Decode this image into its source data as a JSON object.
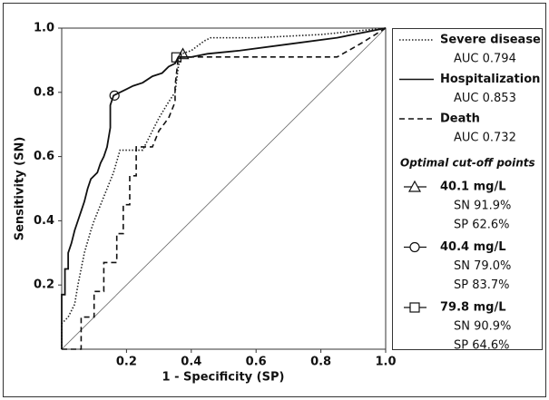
{
  "chart_data": {
    "type": "line",
    "xlabel": "1 - Specificity (SP)",
    "ylabel": "Sensitivity (SN)",
    "xlim": [
      0,
      1
    ],
    "ylim": [
      0,
      1
    ],
    "xticks": [
      0.2,
      0.4,
      0.6,
      0.8,
      {
        "value": 1,
        "label": "1.0"
      }
    ],
    "yticks": [
      0.2,
      0.4,
      0.6,
      0.8,
      {
        "value": 1,
        "label": "1.0"
      }
    ],
    "series": [
      {
        "name": "Severe disease",
        "auc_label": "AUC 0.794",
        "color": "#222222",
        "dash": "dotted",
        "x": [
          0,
          0,
          0.02,
          0.04,
          0.05,
          0.07,
          0.09,
          0.1,
          0.12,
          0.14,
          0.16,
          0.18,
          0.25,
          0.27,
          0.3,
          0.33,
          0.35,
          0.36,
          0.37,
          0.4,
          0.44,
          0.46,
          0.6,
          0.8,
          1
        ],
        "values": [
          0,
          0.08,
          0.1,
          0.14,
          0.2,
          0.3,
          0.37,
          0.4,
          0.45,
          0.5,
          0.55,
          0.62,
          0.62,
          0.66,
          0.72,
          0.77,
          0.8,
          0.88,
          0.92,
          0.93,
          0.96,
          0.97,
          0.97,
          0.98,
          1
        ]
      },
      {
        "name": "Hospitalization",
        "auc_label": "AUC 0.853",
        "color": "#111111",
        "dash": "solid",
        "x": [
          0,
          0,
          0.01,
          0.01,
          0.02,
          0.02,
          0.03,
          0.04,
          0.05,
          0.06,
          0.07,
          0.08,
          0.09,
          0.11,
          0.12,
          0.13,
          0.14,
          0.15,
          0.15,
          0.16,
          0.18,
          0.2,
          0.22,
          0.25,
          0.28,
          0.31,
          0.33,
          0.35,
          0.36,
          0.4,
          0.45,
          0.55,
          0.7,
          0.85,
          1
        ],
        "values": [
          0,
          0.17,
          0.17,
          0.25,
          0.25,
          0.3,
          0.33,
          0.37,
          0.4,
          0.43,
          0.46,
          0.5,
          0.53,
          0.55,
          0.58,
          0.6,
          0.63,
          0.69,
          0.76,
          0.79,
          0.8,
          0.81,
          0.82,
          0.83,
          0.85,
          0.86,
          0.88,
          0.89,
          0.91,
          0.91,
          0.92,
          0.93,
          0.95,
          0.97,
          1
        ]
      },
      {
        "name": "Death",
        "auc_label": "AUC 0.732",
        "color": "#111111",
        "dash": "dashed",
        "x": [
          0,
          0.06,
          0.06,
          0.1,
          0.1,
          0.13,
          0.13,
          0.17,
          0.17,
          0.19,
          0.19,
          0.21,
          0.21,
          0.23,
          0.23,
          0.28,
          0.3,
          0.33,
          0.35,
          0.35,
          0.36,
          0.5,
          0.85,
          0.92,
          1
        ],
        "values": [
          0,
          0,
          0.1,
          0.1,
          0.18,
          0.18,
          0.27,
          0.27,
          0.36,
          0.36,
          0.45,
          0.45,
          0.54,
          0.54,
          0.63,
          0.63,
          0.68,
          0.72,
          0.77,
          0.82,
          0.91,
          0.91,
          0.91,
          0.95,
          1
        ]
      }
    ],
    "cutoff_title": "Optimal cut-off points",
    "cutoffs": [
      {
        "marker": "triangle",
        "label": "40.1 mg/L",
        "sn_label": "SN 91.9%",
        "sp_label": "SP 62.6%",
        "x": 0.374,
        "y": 0.919
      },
      {
        "marker": "circle",
        "label": "40.4 mg/L",
        "sn_label": "SN 79.0%",
        "sp_label": "SP 83.7%",
        "x": 0.163,
        "y": 0.79
      },
      {
        "marker": "square",
        "label": "79.8 mg/L",
        "sn_label": "SN 90.9%",
        "sp_label": "SP 64.6%",
        "x": 0.354,
        "y": 0.909
      }
    ]
  }
}
